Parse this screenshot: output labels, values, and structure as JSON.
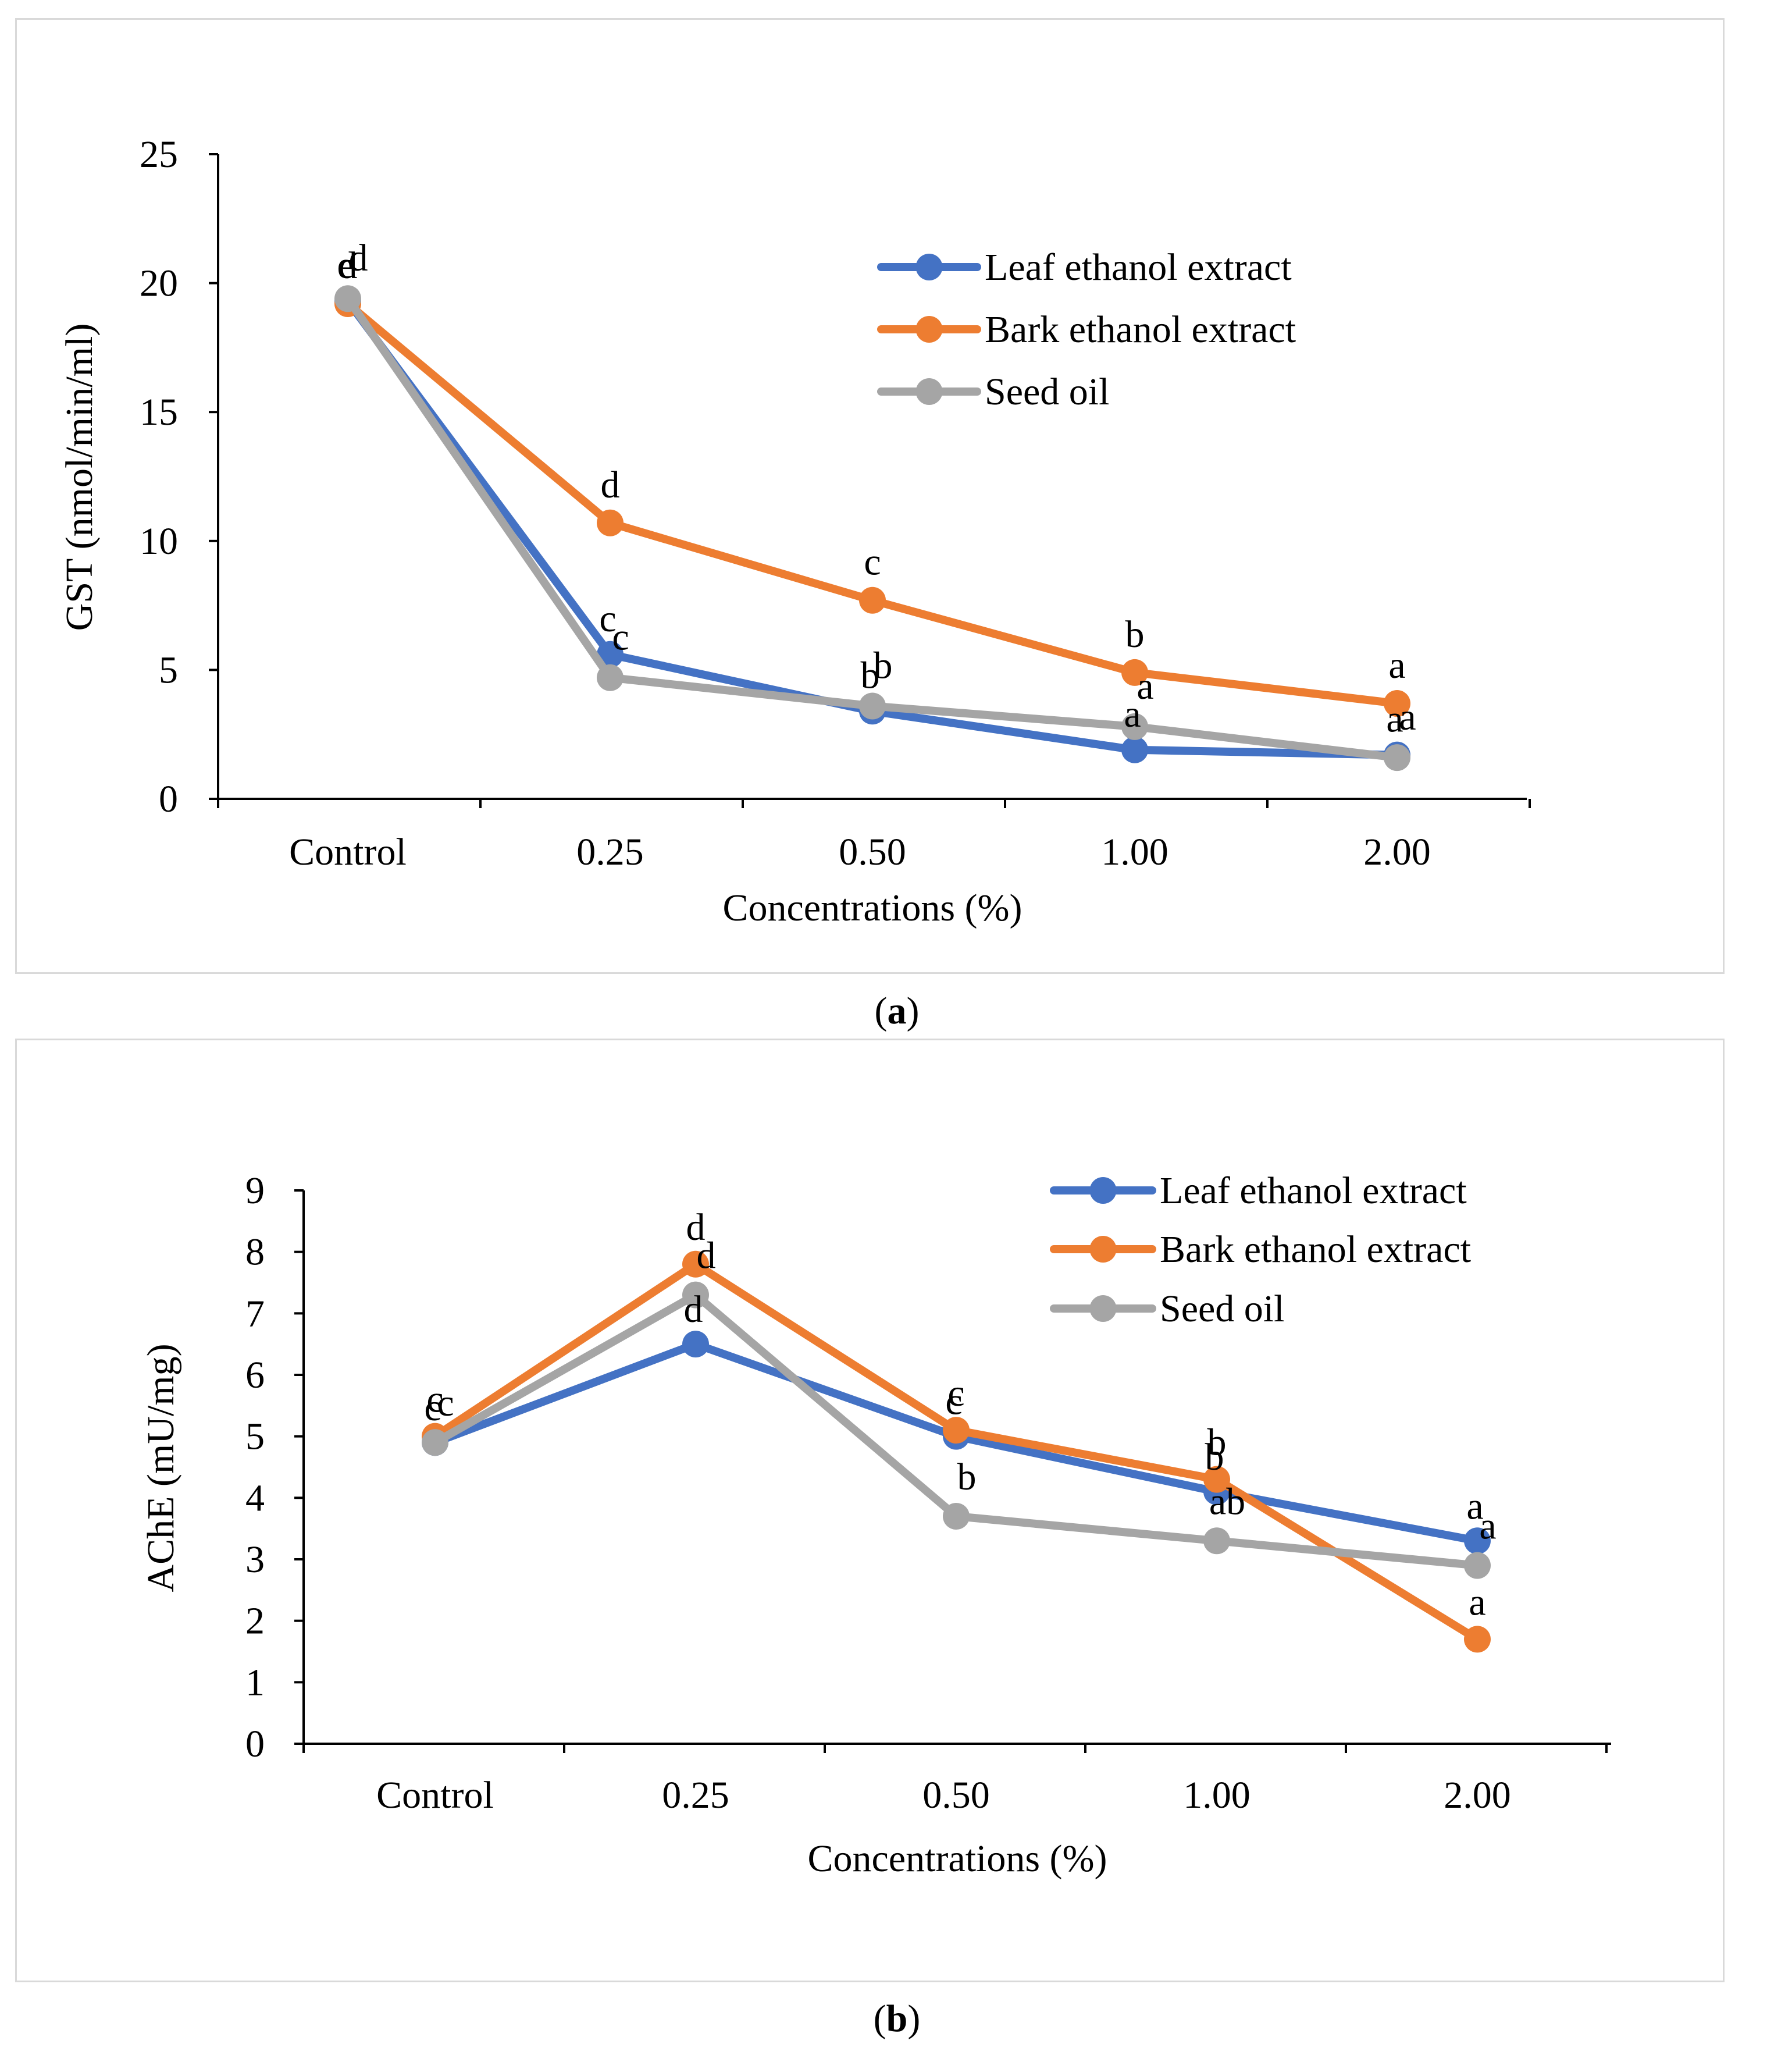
{
  "chart_data": [
    {
      "type": "line",
      "panel_label": "a",
      "title": "",
      "xlabel": "Concentrations (%)",
      "ylabel": "GST (nmol/min/ml)",
      "categories": [
        "Control",
        "0.25",
        "0.50",
        "1.00",
        "2.00"
      ],
      "ylim": [
        0,
        25
      ],
      "yticks": [
        0,
        5,
        10,
        15,
        20,
        25
      ],
      "legend_position": "top-right",
      "series": [
        {
          "name": "Leaf ethanol extract",
          "color": "#4472C4",
          "values": [
            19.3,
            5.6,
            3.4,
            1.9,
            1.7
          ],
          "letters": [
            "e",
            "c",
            "b",
            "a",
            "a"
          ]
        },
        {
          "name": "Bark ethanol extract",
          "color": "#ED7D31",
          "values": [
            19.2,
            10.7,
            7.7,
            4.9,
            3.7
          ],
          "letters": [
            "d",
            "d",
            "c",
            "b",
            "a"
          ]
        },
        {
          "name": "Seed oil",
          "color": "#A5A5A5",
          "values": [
            19.4,
            4.7,
            3.6,
            2.8,
            1.6
          ],
          "letters": [
            "d",
            "c",
            "b",
            "a",
            "a"
          ]
        }
      ]
    },
    {
      "type": "line",
      "panel_label": "b",
      "title": "",
      "xlabel": "Concentrations (%)",
      "ylabel": "AChE (mU/mg)",
      "categories": [
        "Control",
        "0.25",
        "0.50",
        "1.00",
        "2.00"
      ],
      "ylim": [
        0,
        9
      ],
      "yticks": [
        0,
        1,
        2,
        3,
        4,
        5,
        6,
        7,
        8,
        9
      ],
      "legend_position": "top-right",
      "series": [
        {
          "name": "Leaf ethanol extract",
          "color": "#4472C4",
          "values": [
            4.9,
            6.5,
            5.0,
            4.1,
            3.3
          ],
          "letters": [
            "c",
            "d",
            "c",
            "b",
            "a"
          ]
        },
        {
          "name": "Bark ethanol extract",
          "color": "#ED7D31",
          "values": [
            5.0,
            7.8,
            5.1,
            4.3,
            1.7
          ],
          "letters": [
            "c",
            "d",
            "c",
            "b",
            "a"
          ]
        },
        {
          "name": "Seed oil",
          "color": "#A5A5A5",
          "values": [
            4.9,
            7.3,
            3.7,
            3.3,
            2.9
          ],
          "letters": [
            "c",
            "d",
            "b",
            "ab",
            "a"
          ]
        }
      ]
    }
  ]
}
